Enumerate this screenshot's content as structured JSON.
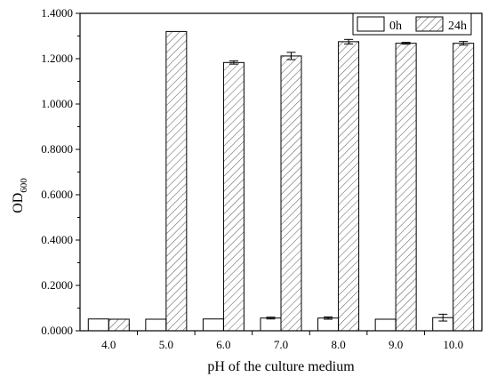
{
  "chart_data": {
    "type": "bar",
    "xlabel": "pH of the culture medium",
    "ylabel": "OD",
    "ylabel_subscript": "600",
    "ylim": [
      0,
      1.4
    ],
    "yticks": [
      "0.0000",
      "0.2000",
      "0.4000",
      "0.6000",
      "0.8000",
      "1.0000",
      "1.2000",
      "1.4000"
    ],
    "categories": [
      "4.0",
      "5.0",
      "6.0",
      "7.0",
      "8.0",
      "9.0",
      "10.0"
    ],
    "series": [
      {
        "name": "0h",
        "fill": "none",
        "values": [
          0.052,
          0.051,
          0.052,
          0.056,
          0.056,
          0.051,
          0.058
        ],
        "errors": [
          0.0,
          0.0,
          0.0,
          0.004,
          0.005,
          0.0,
          0.015
        ]
      },
      {
        "name": "24h",
        "fill": "hatched",
        "values": [
          0.051,
          1.32,
          1.183,
          1.212,
          1.275,
          1.268,
          1.268
        ],
        "errors": [
          0.0,
          0.0,
          0.007,
          0.016,
          0.01,
          0.004,
          0.008
        ]
      }
    ],
    "legend_position": "top-right",
    "colors": {
      "bar_stroke": "#000000",
      "hatch": "#555555",
      "background": "#ffffff"
    }
  }
}
